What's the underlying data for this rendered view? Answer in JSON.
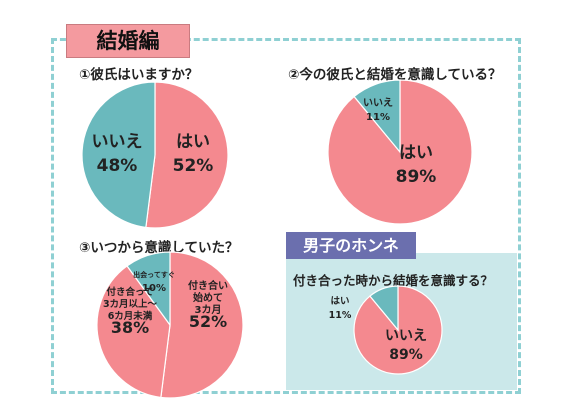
{
  "header": {
    "title": "結婚編"
  },
  "colors": {
    "pink": "#f4898f",
    "teal": "#6ab9bd",
    "frame": "#8fd0d3",
    "male_title_bg": "#6b6fae",
    "male_panel_bg": "#cbe8ea"
  },
  "male_section": {
    "title": "男子のホンネ"
  },
  "chart_data": [
    {
      "type": "pie",
      "title": "①彼氏はいますか？",
      "slices": [
        {
          "label": "はい",
          "value": 52,
          "value_text": "52%",
          "color": "#f4898f"
        },
        {
          "label": "いいえ",
          "value": 48,
          "value_text": "48%",
          "color": "#6ab9bd"
        }
      ]
    },
    {
      "type": "pie",
      "title": "②今の彼氏と結婚を意識している？",
      "slices": [
        {
          "label": "はい",
          "value": 89,
          "value_text": "89%",
          "color": "#f4898f"
        },
        {
          "label": "いいえ",
          "value": 11,
          "value_text": "11%",
          "color": "#6ab9bd"
        }
      ]
    },
    {
      "type": "pie",
      "title": "③いつから意識していた？",
      "slices": [
        {
          "label": "付き合い始めて3カ月",
          "label_lines": [
            "付き合い",
            "始めて",
            "3カ月"
          ],
          "value": 52,
          "value_text": "52%",
          "color": "#f4898f"
        },
        {
          "label": "付き合って3カ月以上～6カ月未満",
          "label_lines": [
            "付き合って",
            "3カ月以上～",
            "6カ月未満"
          ],
          "value": 38,
          "value_text": "38%",
          "color": "#f4898f"
        },
        {
          "label": "出会ってすぐ",
          "label_lines": [
            "出会ってすぐ"
          ],
          "value": 10,
          "value_text": "10%",
          "color": "#6ab9bd"
        }
      ]
    },
    {
      "type": "pie",
      "title": "付き合った時から結婚を意識する？",
      "slices": [
        {
          "label": "いいえ",
          "value": 89,
          "value_text": "89%",
          "color": "#f4898f"
        },
        {
          "label": "はい",
          "value": 11,
          "value_text": "11%",
          "color": "#6ab9bd"
        }
      ]
    }
  ]
}
